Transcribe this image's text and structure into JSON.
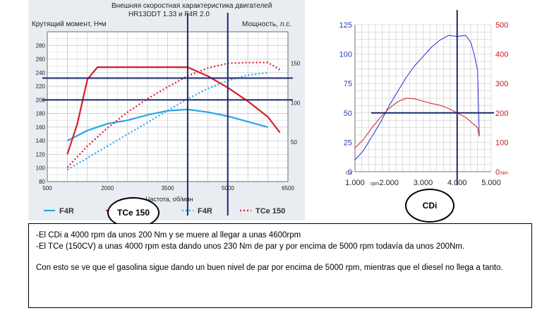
{
  "chart_data": [
    {
      "type": "line",
      "title": "Внешняя скоростная характеристика двигателей",
      "subtitle": "HR13DDT 1.33 и F4R 2.0",
      "ylabel": "Крутящий момент, Н•м",
      "y2label": "Мощность, л.с.",
      "xlabel": "Частота, об/мин",
      "xlim": [
        500,
        6500
      ],
      "ylim": [
        80,
        300
      ],
      "y2lim": [
        0,
        190
      ],
      "x_ticks": [
        "500",
        "2000",
        "3500",
        "5000",
        "6500"
      ],
      "y_ticks": [
        "80",
        "100",
        "120",
        "140",
        "160",
        "180",
        "200",
        "220",
        "240",
        "260",
        "280"
      ],
      "y2_ticks": [
        "50",
        "100",
        "150"
      ],
      "legend": [
        "F4R",
        "TCe 150",
        "F4R",
        "TCe 150"
      ],
      "series": [
        {
          "name": "F4R",
          "kind": "torque",
          "color": "#2aa6e6",
          "style": "solid",
          "x": [
            1000,
            1500,
            2000,
            2500,
            3000,
            3500,
            4000,
            4500,
            5000,
            5500,
            6000
          ],
          "y": [
            140,
            155,
            165,
            170,
            178,
            184,
            186,
            182,
            176,
            168,
            160
          ]
        },
        {
          "name": "TCe 150",
          "kind": "torque",
          "color": "#d81f2a",
          "style": "solid",
          "x": [
            1000,
            1250,
            1500,
            1750,
            4000,
            4500,
            5000,
            5500,
            6000,
            6300
          ],
          "y": [
            120,
            165,
            230,
            248,
            248,
            235,
            218,
            198,
            175,
            152
          ]
        },
        {
          "name": "F4R",
          "kind": "power",
          "color": "#2aa6e6",
          "style": "dotted",
          "x": [
            1000,
            1500,
            2000,
            2500,
            3000,
            3500,
            4000,
            4500,
            5000,
            5500,
            6000
          ],
          "y": [
            15,
            30,
            45,
            60,
            75,
            90,
            105,
            118,
            128,
            135,
            138
          ]
        },
        {
          "name": "TCe 150",
          "kind": "power",
          "color": "#d81f2a",
          "style": "dotted",
          "x": [
            1000,
            1500,
            2000,
            2500,
            3000,
            3500,
            4000,
            4500,
            5000,
            5500,
            6000,
            6300
          ],
          "y": [
            18,
            45,
            68,
            88,
            105,
            120,
            134,
            144,
            150,
            151,
            151,
            142
          ]
        }
      ],
      "markers_x": [
        4000,
        5000
      ],
      "markers_y": [
        232,
        200
      ]
    },
    {
      "type": "line",
      "xlim": [
        1000,
        5000
      ],
      "ylim": [
        0,
        125
      ],
      "y2lim": [
        0,
        500
      ],
      "x_ticks": [
        "1.000",
        "2.000",
        "3.000",
        "4.000",
        "5.000"
      ],
      "x_unit": "rpm",
      "y_ticks": [
        "0",
        "25",
        "50",
        "75",
        "100",
        "125"
      ],
      "y_unit": "CV",
      "y2_ticks": [
        "0",
        "100",
        "200",
        "300",
        "400",
        "500"
      ],
      "y2_unit": "Nm",
      "series": [
        {
          "kind": "power",
          "color": "#2a2ad0",
          "x": [
            1000,
            1250,
            1500,
            1750,
            2000,
            2250,
            2500,
            2750,
            3000,
            3250,
            3500,
            3750,
            4000,
            4250,
            4400,
            4500,
            4600,
            4650
          ],
          "y": [
            10,
            18,
            30,
            42,
            56,
            68,
            80,
            90,
            98,
            106,
            112,
            116,
            115,
            116,
            110,
            100,
            86,
            30
          ]
        },
        {
          "kind": "torque",
          "color": "#d02020",
          "x": [
            1000,
            1250,
            1500,
            1750,
            2000,
            2250,
            2500,
            2750,
            3000,
            3250,
            3500,
            3750,
            4000,
            4250,
            4400,
            4500,
            4600,
            4650
          ],
          "y": [
            80,
            110,
            150,
            185,
            215,
            238,
            250,
            248,
            240,
            232,
            226,
            215,
            200,
            185,
            170,
            160,
            150,
            120
          ]
        }
      ],
      "markers_x": [
        4000
      ],
      "markers_y": [
        50
      ],
      "label": "CDi"
    }
  ],
  "text_box": {
    "line1": "-El CDi a 4000 rpm da unos 200 Nm y se muere al llegar a unas 4600rpm",
    "line2": "-El TCe (150CV) a unas 4000 rpm esta dando unos 230 Nm de par y por encima de 5000 rpm todavía da unos 200Nm.",
    "line3": "Con esto se ve que el gasolina sigue dando un buen nivel de par por encima de 5000 rpm, mientras que el diesel no llega a tanto."
  },
  "ovals": {
    "left": "TCe 150",
    "right": "CDi"
  }
}
